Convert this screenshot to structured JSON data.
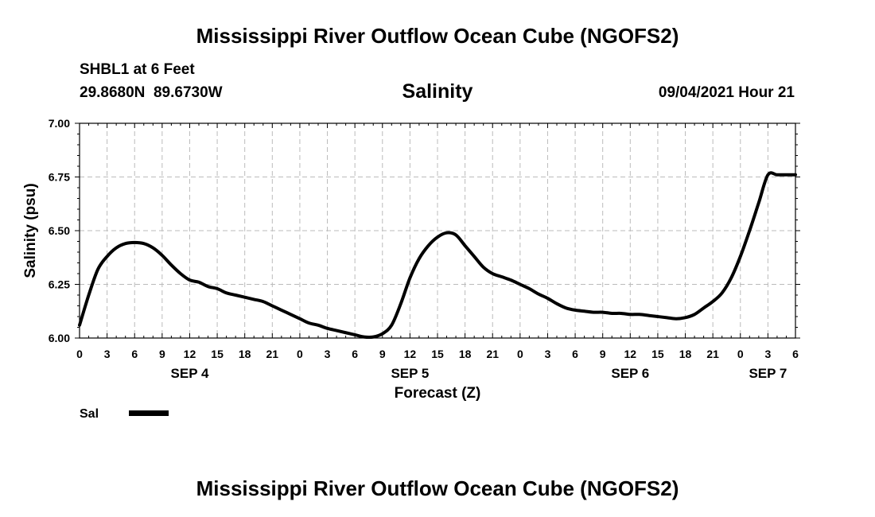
{
  "header": {
    "title": "Mississippi River Outflow Ocean Cube (NGOFS2)",
    "station": "SHBL1 at 6 Feet",
    "coordinates": "29.8680N  89.6730W",
    "run_time": "09/04/2021 Hour 21",
    "footer_title": "Mississippi River Outflow Ocean Cube (NGOFS2)"
  },
  "colors": {
    "line": "#000000",
    "grid": "#bbbbbb"
  },
  "chart_data": {
    "type": "line",
    "title": "Salinity",
    "xlabel": "Forecast (Z)",
    "ylabel": "Salinity (psu)",
    "xlim": [
      0,
      78
    ],
    "ylim": [
      6.0,
      7.0
    ],
    "y_ticks": [
      "6.00",
      "6.25",
      "6.50",
      "6.75",
      "7.00"
    ],
    "x_tick_labels": [
      "0",
      "3",
      "6",
      "9",
      "12",
      "15",
      "18",
      "21",
      "0",
      "3",
      "6",
      "9",
      "12",
      "15",
      "18",
      "21",
      "0",
      "3",
      "6",
      "9",
      "12",
      "15",
      "18",
      "21",
      "0",
      "3",
      "6"
    ],
    "day_labels": [
      {
        "label": "SEP 4",
        "hour": 12
      },
      {
        "label": "SEP 5",
        "hour": 36
      },
      {
        "label": "SEP 6",
        "hour": 60
      },
      {
        "label": "SEP 7",
        "hour": 75
      }
    ],
    "grid": true,
    "legend": {
      "label": "Sal",
      "position": "bottom-left"
    },
    "series": [
      {
        "name": "Sal",
        "x": [
          0,
          1,
          2,
          3,
          4,
          5,
          6,
          7,
          8,
          9,
          10,
          11,
          12,
          13,
          14,
          15,
          16,
          17,
          18,
          19,
          20,
          21,
          22,
          23,
          24,
          25,
          26,
          27,
          28,
          29,
          30,
          31,
          32,
          33,
          34,
          35,
          36,
          37,
          38,
          39,
          40,
          41,
          42,
          43,
          44,
          45,
          46,
          47,
          48,
          49,
          50,
          51,
          52,
          53,
          54,
          55,
          56,
          57,
          58,
          59,
          60,
          61,
          62,
          63,
          64,
          65,
          66,
          67,
          68,
          69,
          70,
          71,
          72,
          73,
          74,
          75,
          76,
          77,
          78
        ],
        "values": [
          6.06,
          6.2,
          6.32,
          6.38,
          6.42,
          6.44,
          6.445,
          6.44,
          6.42,
          6.385,
          6.34,
          6.3,
          6.27,
          6.26,
          6.24,
          6.23,
          6.21,
          6.2,
          6.19,
          6.18,
          6.17,
          6.15,
          6.13,
          6.11,
          6.09,
          6.07,
          6.06,
          6.045,
          6.035,
          6.025,
          6.015,
          6.005,
          6.005,
          6.02,
          6.06,
          6.16,
          6.28,
          6.37,
          6.43,
          6.47,
          6.49,
          6.48,
          6.43,
          6.38,
          6.33,
          6.3,
          6.285,
          6.27,
          6.25,
          6.23,
          6.205,
          6.185,
          6.16,
          6.14,
          6.13,
          6.125,
          6.12,
          6.12,
          6.115,
          6.115,
          6.11,
          6.11,
          6.105,
          6.1,
          6.095,
          6.09,
          6.095,
          6.11,
          6.14,
          6.17,
          6.21,
          6.28,
          6.38,
          6.5,
          6.63,
          6.76,
          6.76,
          6.76,
          6.76
        ]
      }
    ]
  }
}
